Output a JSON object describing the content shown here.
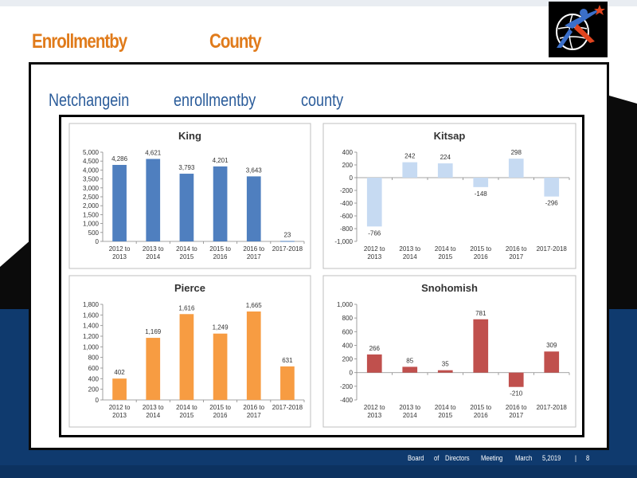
{
  "slide": {
    "title_part1": "Enrollmentby",
    "title_part2": "County",
    "subtitle_part1": "Netchangein",
    "subtitle_part2": "enrollmentby",
    "subtitle_part3": "county"
  },
  "footer": {
    "w1": "Board",
    "w2": "of",
    "w3": "Directors",
    "w4": "Meeting",
    "w5": "March",
    "w6": "5,2019",
    "separator": "|",
    "page_number": "8"
  },
  "colors": {
    "title_orange": "#e07b1b",
    "subtitle_blue": "#2b5c9a",
    "navy_band": "#0f3a6e",
    "king_bar": "#4f7fbf",
    "kitsap_bar": "#c6daf2",
    "pierce_bar": "#f79c42",
    "snohomish_bar": "#c0504d"
  },
  "logo": {
    "icon": "runner-globe-logo"
  },
  "chart_data": [
    {
      "type": "bar",
      "title": "King",
      "categories": [
        "2012 to\n2013",
        "2013 to\n2014",
        "2014 to\n2015",
        "2015 to\n2016",
        "2016 to\n2017",
        "2017-2018"
      ],
      "values": [
        4286,
        4621,
        3793,
        4201,
        3643,
        23
      ],
      "value_labels": [
        "4,286",
        "4,621",
        "3,793",
        "4,201",
        "3,643",
        "23"
      ],
      "ylim": [
        0,
        5000
      ],
      "yticks": [
        0,
        500,
        1000,
        1500,
        2000,
        2500,
        3000,
        3500,
        4000,
        4500,
        5000
      ],
      "ytick_labels": [
        "0",
        "500",
        "1,000",
        "1,500",
        "2,000",
        "2,500",
        "3,000",
        "3,500",
        "4,000",
        "4,500",
        "5,000"
      ],
      "color": "#4f7fbf",
      "grid": false
    },
    {
      "type": "bar",
      "title": "Kitsap",
      "categories": [
        "2012 to\n2013",
        "2013 to\n2014",
        "2014 to\n2015",
        "2015 to\n2016",
        "2016 to\n2017",
        "2017-2018"
      ],
      "values": [
        -766,
        242,
        224,
        -148,
        298,
        -296
      ],
      "value_labels": [
        "-766",
        "242",
        "224",
        "-148",
        "298",
        "-296"
      ],
      "ylim": [
        -1000,
        400
      ],
      "yticks": [
        -1000,
        -800,
        -600,
        -400,
        -200,
        0,
        200,
        400
      ],
      "ytick_labels": [
        "-1,000",
        "-800",
        "-600",
        "-400",
        "-200",
        "0",
        "200",
        "400"
      ],
      "color": "#c6daf2",
      "grid": false
    },
    {
      "type": "bar",
      "title": "Pierce",
      "categories": [
        "2012 to\n2013",
        "2013 to\n2014",
        "2014 to\n2015",
        "2015 to\n2016",
        "2016 to\n2017",
        "2017-2018"
      ],
      "values": [
        402,
        1169,
        1616,
        1249,
        1665,
        631
      ],
      "value_labels": [
        "402",
        "1,169",
        "1,616",
        "1,249",
        "1,665",
        "631"
      ],
      "ylim": [
        0,
        1800
      ],
      "yticks": [
        0,
        200,
        400,
        600,
        800,
        1000,
        1200,
        1400,
        1600,
        1800
      ],
      "ytick_labels": [
        "0",
        "200",
        "400",
        "600",
        "800",
        "1,000",
        "1,200",
        "1,400",
        "1,600",
        "1,800"
      ],
      "color": "#f79c42",
      "grid": false
    },
    {
      "type": "bar",
      "title": "Snohomish",
      "categories": [
        "2012 to\n2013",
        "2013 to\n2014",
        "2014 to\n2015",
        "2015 to\n2016",
        "2016 to\n2017",
        "2017-2018"
      ],
      "values": [
        266,
        85,
        35,
        781,
        -210,
        309
      ],
      "value_labels": [
        "266",
        "85",
        "35",
        "781",
        "-210",
        "309"
      ],
      "ylim": [
        -400,
        1000
      ],
      "yticks": [
        -400,
        -200,
        0,
        200,
        400,
        600,
        800,
        1000
      ],
      "ytick_labels": [
        "-400",
        "-200",
        "0",
        "200",
        "400",
        "600",
        "800",
        "1,000"
      ],
      "color": "#c0504d",
      "grid": false
    }
  ]
}
